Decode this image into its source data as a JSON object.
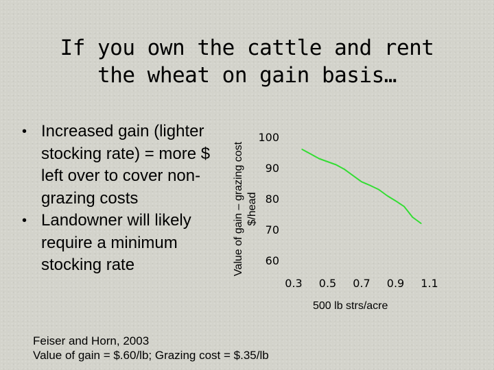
{
  "slide": {
    "title_line1": "If you own the cattle and rent",
    "title_line2": "the wheat on gain basis…",
    "bullets": [
      "Increased gain (lighter stocking rate) = more $ left over to cover non-grazing costs",
      "Landowner will likely require a minimum stocking rate"
    ],
    "citation_line1": "Feiser and Horn, 2003",
    "citation_line2": "Value of gain = $.60/lb; Grazing cost = $.35/lb"
  },
  "chart_data": {
    "type": "line",
    "title": "",
    "xlabel": "500 lb strs/acre",
    "ylabel_line1": "Value of gain – grazing cost",
    "ylabel_line2": "$/head",
    "xlim": [
      0.3,
      1.1
    ],
    "ylim": [
      60,
      100
    ],
    "x_ticks": [
      "0.3",
      "0.5",
      "0.7",
      "0.9",
      "1.1"
    ],
    "y_ticks": [
      "60",
      "70",
      "80",
      "90",
      "100"
    ],
    "grid": false,
    "line_color": "#33dd33",
    "series": [
      {
        "x": [
          0.35,
          0.4,
          0.45,
          0.5,
          0.55,
          0.6,
          0.65,
          0.7,
          0.75,
          0.8,
          0.85,
          0.9,
          0.95,
          1.0
        ],
        "values": [
          96,
          94.5,
          93,
          92,
          91,
          89.5,
          87.5,
          85.5,
          84.3,
          83,
          81,
          79.3,
          77.5,
          74
        ]
      },
      {
        "x": [
          1.0,
          1.05
        ],
        "values": [
          74,
          72
        ]
      }
    ]
  }
}
